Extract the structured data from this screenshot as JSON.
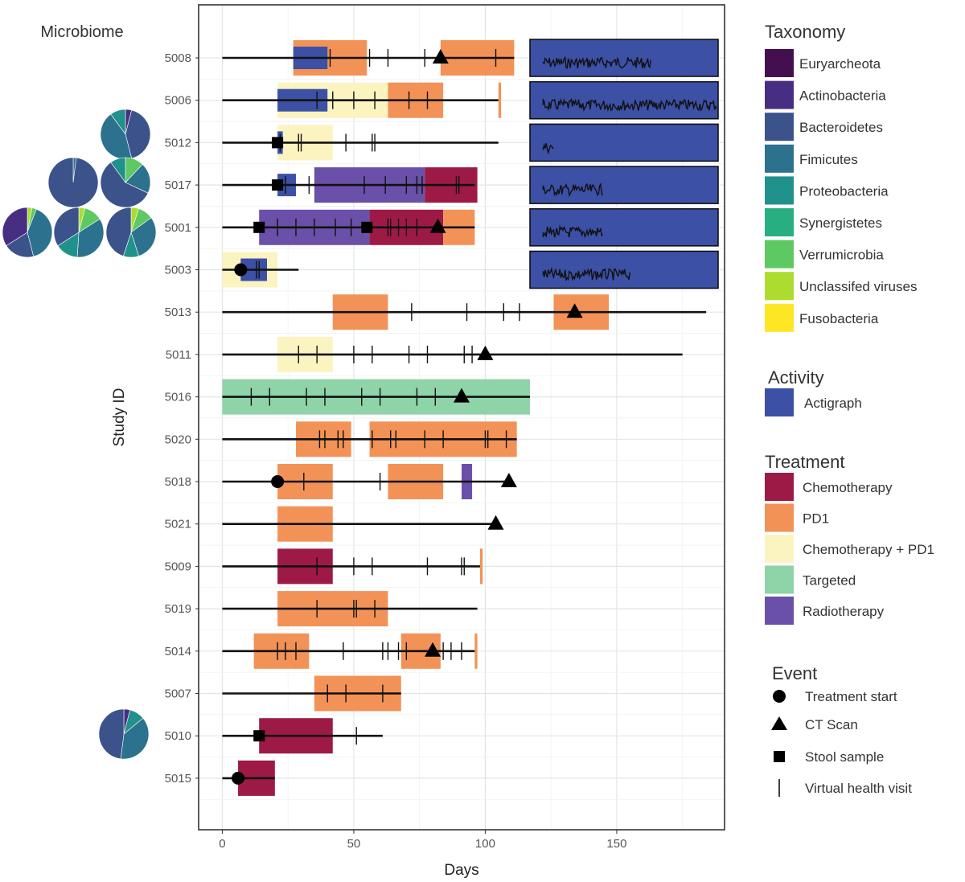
{
  "chart_data": {
    "type": "timeline",
    "title": "",
    "microbiome_label": "Microbiome",
    "xlabel": "Days",
    "ylabel": "Study ID",
    "xlim": [
      -9,
      191
    ],
    "x_ticks": [
      0,
      50,
      100,
      150
    ],
    "x_tick_labels": [
      "0",
      "50",
      "100",
      "150"
    ],
    "grid": true,
    "study_ids": [
      "5008",
      "5006",
      "5012",
      "5017",
      "5001",
      "5003",
      "5013",
      "5011",
      "5016",
      "5020",
      "5018",
      "5021",
      "5009",
      "5019",
      "5014",
      "5007",
      "5010",
      "5015"
    ],
    "colors": {
      "Chemotherapy": "#9e1a46",
      "PD1": "#f39257",
      "Chemotherapy + PD1": "#fbf3c0",
      "Targeted": "#8fd3a9",
      "Radiotherapy": "#6a50a8",
      "Actigraph": "#3c50a6",
      "Euryarcheota": "#440f4f",
      "Actinobacteria": "#482e82",
      "Bacteroidetes": "#3b528b",
      "Fimicutes": "#2c728e",
      "Proteobacteria": "#21918c",
      "Synergistetes": "#28ae80",
      "Verrumicrobia": "#5ec962",
      "Unclassifed viruses": "#addc30",
      "Fusobacteria": "#fde725"
    },
    "rows": [
      {
        "id": "5008",
        "follow_end": 111,
        "treatments": [
          {
            "type": "PD1",
            "start": 27,
            "end": 55
          },
          {
            "type": "PD1",
            "start": 83,
            "end": 111
          }
        ],
        "actigraph": [
          {
            "start": 27,
            "end": 40
          }
        ],
        "visits": [
          41,
          56,
          63,
          77,
          104
        ],
        "treatment_start": [],
        "ct_scan": [
          83
        ],
        "stool": [],
        "activity": {
          "start": 117,
          "end": 191,
          "trace_start": 122,
          "trace_end": 163
        }
      },
      {
        "id": "5006",
        "follow_end": 105,
        "treatments": [
          {
            "type": "Chemotherapy + PD1",
            "start": 21,
            "end": 63
          },
          {
            "type": "PD1",
            "start": 63,
            "end": 84
          },
          {
            "type": "PD1",
            "start": 105,
            "end": 106
          }
        ],
        "actigraph": [
          {
            "start": 21,
            "end": 40
          }
        ],
        "visits": [
          36,
          42,
          50,
          58,
          71,
          78
        ],
        "treatment_start": [],
        "ct_scan": [],
        "stool": [],
        "activity": {
          "start": 117,
          "end": 191,
          "trace_start": 122,
          "trace_end": 188
        }
      },
      {
        "id": "5012",
        "follow_end": 105,
        "treatments": [
          {
            "type": "Chemotherapy + PD1",
            "start": 21,
            "end": 42
          }
        ],
        "actigraph": [
          {
            "start": 21,
            "end": 23
          }
        ],
        "visits": [
          22,
          29,
          30,
          47,
          57,
          58
        ],
        "treatment_start": [],
        "ct_scan": [],
        "stool": [
          21
        ],
        "activity": {
          "start": 117,
          "end": 191,
          "trace_start": 122,
          "trace_end": 126
        }
      },
      {
        "id": "5017",
        "follow_end": 96,
        "treatments": [
          {
            "type": "Radiotherapy",
            "start": 35,
            "end": 77
          },
          {
            "type": "Chemotherapy",
            "start": 77,
            "end": 97
          }
        ],
        "actigraph": [
          {
            "start": 21,
            "end": 28
          }
        ],
        "visits": [
          24,
          33,
          54,
          62,
          70,
          74,
          76,
          89,
          90
        ],
        "treatment_start": [],
        "ct_scan": [],
        "stool": [
          21
        ],
        "activity": {
          "start": 117,
          "end": 191,
          "trace_start": 122,
          "trace_end": 145
        }
      },
      {
        "id": "5001",
        "follow_end": 96,
        "treatments": [
          {
            "type": "Radiotherapy",
            "start": 14,
            "end": 56
          },
          {
            "type": "Chemotherapy",
            "start": 56,
            "end": 84
          },
          {
            "type": "PD1",
            "start": 84,
            "end": 96
          }
        ],
        "actigraph": [],
        "visits": [
          21,
          28,
          35,
          43,
          49,
          63,
          64,
          67,
          70,
          74
        ],
        "treatment_start": [],
        "ct_scan": [
          82
        ],
        "stool": [
          14,
          55
        ],
        "activity": {
          "start": 117,
          "end": 191,
          "trace_start": 122,
          "trace_end": 145
        }
      },
      {
        "id": "5003",
        "follow_end": 29,
        "treatments": [
          {
            "type": "Chemotherapy + PD1",
            "start": 0,
            "end": 21
          }
        ],
        "actigraph": [
          {
            "start": 7,
            "end": 17
          }
        ],
        "visits": [
          13,
          14
        ],
        "treatment_start": [
          7
        ],
        "ct_scan": [],
        "stool": [],
        "activity": {
          "start": 117,
          "end": 191,
          "trace_start": 122,
          "trace_end": 155
        }
      },
      {
        "id": "5013",
        "follow_end": 184,
        "treatments": [
          {
            "type": "PD1",
            "start": 42,
            "end": 63
          },
          {
            "type": "PD1",
            "start": 126,
            "end": 147
          }
        ],
        "actigraph": [],
        "visits": [
          72,
          93,
          107,
          113
        ],
        "treatment_start": [],
        "ct_scan": [
          134
        ],
        "stool": []
      },
      {
        "id": "5011",
        "follow_end": 175,
        "treatments": [
          {
            "type": "Chemotherapy + PD1",
            "start": 21,
            "end": 42
          }
        ],
        "actigraph": [],
        "visits": [
          29,
          36,
          50,
          57,
          71,
          78,
          92,
          95
        ],
        "treatment_start": [],
        "ct_scan": [
          100
        ],
        "stool": []
      },
      {
        "id": "5016",
        "follow_end": 117,
        "treatments": [
          {
            "type": "Targeted",
            "start": 0,
            "end": 117
          }
        ],
        "actigraph": [],
        "visits": [
          11,
          18,
          32,
          39,
          53,
          60,
          74,
          81
        ],
        "treatment_start": [],
        "ct_scan": [
          91
        ],
        "stool": []
      },
      {
        "id": "5020",
        "follow_end": 112,
        "treatments": [
          {
            "type": "PD1",
            "start": 28,
            "end": 49
          },
          {
            "type": "PD1",
            "start": 56,
            "end": 112
          }
        ],
        "actigraph": [],
        "visits": [
          37,
          39,
          44,
          46,
          57,
          64,
          66,
          77,
          84,
          100,
          101,
          108
        ],
        "treatment_start": [],
        "ct_scan": [],
        "stool": []
      },
      {
        "id": "5018",
        "follow_end": 109,
        "treatments": [
          {
            "type": "PD1",
            "start": 21,
            "end": 42
          },
          {
            "type": "PD1",
            "start": 63,
            "end": 84
          },
          {
            "type": "Radiotherapy",
            "start": 91,
            "end": 95
          }
        ],
        "actigraph": [],
        "visits": [
          31,
          60
        ],
        "treatment_start": [
          21
        ],
        "ct_scan": [
          109
        ],
        "stool": []
      },
      {
        "id": "5021",
        "follow_end": 104,
        "treatments": [
          {
            "type": "PD1",
            "start": 21,
            "end": 42
          }
        ],
        "actigraph": [],
        "visits": [],
        "treatment_start": [],
        "ct_scan": [
          104
        ],
        "stool": []
      },
      {
        "id": "5009",
        "follow_end": 98,
        "treatments": [
          {
            "type": "Chemotherapy",
            "start": 21,
            "end": 42
          },
          {
            "type": "PD1",
            "start": 98,
            "end": 99
          }
        ],
        "actigraph": [],
        "visits": [
          36,
          50,
          57,
          78,
          91,
          92
        ],
        "treatment_start": [],
        "ct_scan": [],
        "stool": []
      },
      {
        "id": "5019",
        "follow_end": 97,
        "treatments": [
          {
            "type": "PD1",
            "start": 21,
            "end": 63
          }
        ],
        "actigraph": [],
        "visits": [
          36,
          50,
          51,
          58
        ],
        "treatment_start": [],
        "ct_scan": [],
        "stool": []
      },
      {
        "id": "5014",
        "follow_end": 96,
        "treatments": [
          {
            "type": "PD1",
            "start": 12,
            "end": 33
          },
          {
            "type": "PD1",
            "start": 68,
            "end": 83
          },
          {
            "type": "PD1",
            "start": 96,
            "end": 97
          }
        ],
        "actigraph": [],
        "visits": [
          21,
          24,
          28,
          46,
          61,
          63,
          67,
          70,
          84,
          87,
          91
        ],
        "treatment_start": [],
        "ct_scan": [
          80
        ],
        "stool": []
      },
      {
        "id": "5007",
        "follow_end": 68,
        "treatments": [
          {
            "type": "PD1",
            "start": 35,
            "end": 68
          }
        ],
        "actigraph": [],
        "visits": [
          40,
          47,
          61
        ],
        "treatment_start": [],
        "ct_scan": [],
        "stool": []
      },
      {
        "id": "5010",
        "follow_end": 61,
        "treatments": [
          {
            "type": "Chemotherapy",
            "start": 14,
            "end": 42
          }
        ],
        "actigraph": [],
        "visits": [
          51
        ],
        "treatment_start": [],
        "ct_scan": [],
        "stool": [
          14
        ]
      },
      {
        "id": "5015",
        "follow_end": 20,
        "treatments": [
          {
            "type": "Chemotherapy",
            "start": 6,
            "end": 20
          }
        ],
        "actigraph": [],
        "visits": [],
        "treatment_start": [
          6
        ],
        "ct_scan": [],
        "stool": []
      }
    ],
    "microbiome_pies": [
      {
        "label": "5012 sample",
        "slices": [
          {
            "taxon": "Actinobacteria",
            "value": 0.04
          },
          {
            "taxon": "Bacteroidetes",
            "value": 0.42
          },
          {
            "taxon": "Fimicutes",
            "value": 0.44
          },
          {
            "taxon": "Proteobacteria",
            "value": 0.1
          }
        ]
      },
      {
        "label": "5017 sample A",
        "slices": [
          {
            "taxon": "Fimicutes",
            "value": 0.02
          },
          {
            "taxon": "Bacteroidetes",
            "value": 0.98
          }
        ]
      },
      {
        "label": "5017 sample B",
        "slices": [
          {
            "taxon": "Verrumicrobia",
            "value": 0.12
          },
          {
            "taxon": "Fimicutes",
            "value": 0.2
          },
          {
            "taxon": "Bacteroidetes",
            "value": 0.58
          },
          {
            "taxon": "Proteobacteria",
            "value": 0.1
          }
        ]
      },
      {
        "label": "5001 sample A",
        "slices": [
          {
            "taxon": "Unclassifed viruses",
            "value": 0.03
          },
          {
            "taxon": "Verrumicrobia",
            "value": 0.03
          },
          {
            "taxon": "Fimicutes",
            "value": 0.4
          },
          {
            "taxon": "Bacteroidetes",
            "value": 0.2
          },
          {
            "taxon": "Actinobacteria",
            "value": 0.34
          }
        ]
      },
      {
        "label": "5001 sample B",
        "slices": [
          {
            "taxon": "Unclassifed viruses",
            "value": 0.04
          },
          {
            "taxon": "Verrumicrobia",
            "value": 0.12
          },
          {
            "taxon": "Fimicutes",
            "value": 0.35
          },
          {
            "taxon": "Proteobacteria",
            "value": 0.15
          },
          {
            "taxon": "Bacteroidetes",
            "value": 0.34
          }
        ]
      },
      {
        "label": "5001 sample C",
        "slices": [
          {
            "taxon": "Unclassifed viruses",
            "value": 0.05
          },
          {
            "taxon": "Verrumicrobia",
            "value": 0.1
          },
          {
            "taxon": "Fimicutes",
            "value": 0.3
          },
          {
            "taxon": "Proteobacteria",
            "value": 0.1
          },
          {
            "taxon": "Bacteroidetes",
            "value": 0.45
          }
        ]
      },
      {
        "label": "5010 sample",
        "slices": [
          {
            "taxon": "Actinobacteria",
            "value": 0.04
          },
          {
            "taxon": "Proteobacteria",
            "value": 0.1
          },
          {
            "taxon": "Fimicutes",
            "value": 0.38
          },
          {
            "taxon": "Bacteroidetes",
            "value": 0.48
          }
        ]
      }
    ],
    "legends": {
      "taxonomy": {
        "title": "Taxonomy",
        "items": [
          "Euryarcheota",
          "Actinobacteria",
          "Bacteroidetes",
          "Fimicutes",
          "Proteobacteria",
          "Synergistetes",
          "Verrumicrobia",
          "Unclassifed viruses",
          "Fusobacteria"
        ]
      },
      "activity": {
        "title": "Activity",
        "items": [
          "Actigraph"
        ]
      },
      "treatment": {
        "title": "Treatment",
        "items": [
          "Chemotherapy",
          "PD1",
          "Chemotherapy + PD1",
          "Targeted",
          "Radiotherapy"
        ]
      },
      "event": {
        "title": "Event",
        "items": [
          "Treatment start",
          "CT Scan",
          "Stool sample",
          "Virtual health visit"
        ]
      }
    }
  }
}
